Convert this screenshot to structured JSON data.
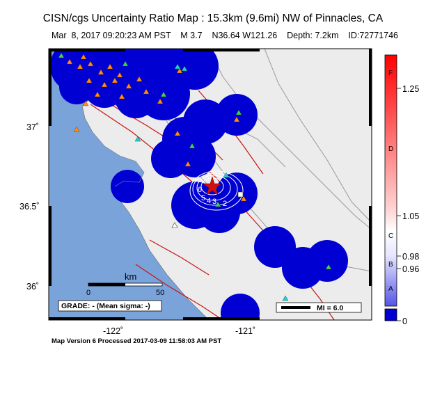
{
  "title": "CISN/cgs Uncertainty Ratio Map : 15.3km (9.6mi) NW of Pinnacles, CA",
  "subtitle": "Mar  8, 2017 09:20:23 AM PST    M 3.7    N36.64 W121.26    Depth: 7.2km    ID:72771746",
  "footer": "Map Version 6 Processed 2017-03-09 11:58:03 AM PST",
  "lat_labels": [
    "37˚",
    "36.5˚",
    "36˚"
  ],
  "lon_labels": [
    "-122˚",
    "-121˚"
  ],
  "scale_bar": {
    "unit": "km",
    "ticks": [
      "0",
      "50"
    ]
  },
  "grade_box": "GRADE: - (Mean sigma: -)",
  "legend_mi": "MI = 6.0",
  "contour_labels": [
    "6",
    "5",
    "4",
    "3",
    "2"
  ],
  "colorbar": {
    "values": [
      "1.25",
      "1.05",
      "0.98",
      "0.96",
      "0"
    ],
    "letters": [
      "F",
      "D",
      "C",
      "B",
      "A"
    ]
  },
  "colors": {
    "ocean": "#7aa3d9",
    "land": "#ececec",
    "uncertainty_blue": "#0000d2",
    "fault": "#c81414",
    "station_triangle": "#ff8c1a",
    "station_green": "#40d060",
    "station_cyan": "#20d0d0",
    "epicenter": "#d01010"
  }
}
